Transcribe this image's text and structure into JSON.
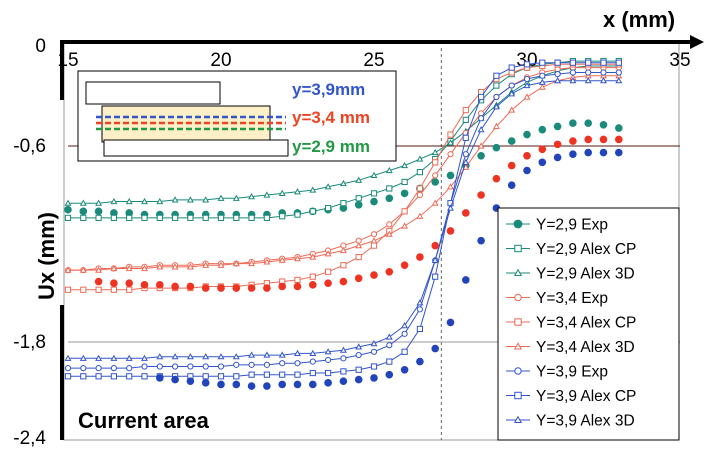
{
  "chart_data": {
    "type": "line",
    "xlabel": "x (mm)",
    "ylabel": "Ux (mm)",
    "xlim": [
      15,
      35
    ],
    "ylim": [
      -2.4,
      0
    ],
    "x_ticks": [
      "15",
      "20",
      "25",
      "30",
      "35"
    ],
    "y_ticks": [
      "0",
      "-0,6",
      "-1,8",
      "-2,4"
    ],
    "grid": false,
    "legend_position": "bottom-right",
    "reference_lines": {
      "x": 27.2,
      "y": [
        -0.6,
        -1.8
      ]
    },
    "annotation": "Current area",
    "inset": {
      "labels": [
        {
          "text": "y=3,9mm",
          "color": "#3355cc"
        },
        {
          "text": "y=3,4 mm",
          "color": "#ee4422"
        },
        {
          "text": "y=2,9 mm",
          "color": "#229944"
        }
      ]
    },
    "series": [
      {
        "name": "Y=2,9 Exp",
        "color": "#1a8a7a",
        "marker": "circle",
        "style": "dots",
        "x": [
          15.0,
          15.5,
          16.0,
          16.5,
          17.0,
          17.5,
          18.0,
          18.5,
          19.0,
          19.5,
          20.0,
          20.5,
          21.0,
          21.5,
          22.0,
          22.5,
          23.0,
          23.5,
          24.0,
          24.5,
          25.0,
          25.5,
          26.0,
          26.5,
          27.0,
          27.5,
          28.0,
          28.5,
          29.0,
          29.5,
          30.0,
          30.5,
          31.0,
          31.5,
          32.0,
          32.5,
          33.0
        ],
        "y": [
          -0.99,
          -1.0,
          -1.0,
          -1.01,
          -1.01,
          -1.02,
          -1.02,
          -1.02,
          -1.02,
          -1.02,
          -1.02,
          -1.02,
          -1.02,
          -1.02,
          -1.01,
          -1.01,
          -1.0,
          -0.99,
          -0.98,
          -0.96,
          -0.94,
          -0.92,
          -0.89,
          -0.86,
          -0.82,
          -0.78,
          -0.72,
          -0.66,
          -0.61,
          -0.57,
          -0.53,
          -0.5,
          -0.48,
          -0.46,
          -0.46,
          -0.47,
          -0.49
        ]
      },
      {
        "name": "Y=2,9 Alex CP",
        "color": "#1a8a7a",
        "marker": "square",
        "style": "line",
        "x": [
          15.0,
          15.5,
          16.0,
          16.5,
          17.0,
          17.5,
          18.0,
          18.5,
          19.0,
          19.5,
          20.0,
          20.5,
          21.0,
          21.5,
          22.0,
          22.5,
          23.0,
          23.5,
          24.0,
          24.5,
          25.0,
          25.5,
          26.0,
          26.5,
          27.0,
          27.5,
          28.0,
          28.5,
          29.0,
          29.5,
          30.0,
          30.5,
          31.0,
          31.5,
          32.0,
          32.5,
          33.0
        ],
        "y": [
          -1.04,
          -1.04,
          -1.04,
          -1.04,
          -1.04,
          -1.04,
          -1.04,
          -1.04,
          -1.04,
          -1.04,
          -1.04,
          -1.04,
          -1.04,
          -1.04,
          -1.03,
          -1.02,
          -1.0,
          -0.98,
          -0.95,
          -0.92,
          -0.89,
          -0.86,
          -0.82,
          -0.76,
          -0.68,
          -0.57,
          -0.44,
          -0.32,
          -0.23,
          -0.16,
          -0.12,
          -0.1,
          -0.09,
          -0.08,
          -0.08,
          -0.08,
          -0.08
        ]
      },
      {
        "name": "Y=2,9 Alex 3D",
        "color": "#1a8a7a",
        "marker": "triangle",
        "style": "line",
        "x": [
          15.0,
          15.5,
          16.0,
          16.5,
          17.0,
          17.5,
          18.0,
          18.5,
          19.0,
          19.5,
          20.0,
          20.5,
          21.0,
          21.5,
          22.0,
          22.5,
          23.0,
          23.5,
          24.0,
          24.5,
          25.0,
          25.5,
          26.0,
          26.5,
          27.0,
          27.5,
          28.0,
          28.5,
          29.0,
          29.5,
          30.0,
          30.5,
          31.0,
          31.5,
          32.0,
          32.5,
          33.0
        ],
        "y": [
          -0.95,
          -0.95,
          -0.95,
          -0.94,
          -0.94,
          -0.94,
          -0.94,
          -0.93,
          -0.93,
          -0.93,
          -0.92,
          -0.92,
          -0.91,
          -0.9,
          -0.89,
          -0.88,
          -0.87,
          -0.85,
          -0.83,
          -0.81,
          -0.78,
          -0.75,
          -0.72,
          -0.68,
          -0.64,
          -0.58,
          -0.51,
          -0.43,
          -0.35,
          -0.27,
          -0.21,
          -0.17,
          -0.14,
          -0.12,
          -0.11,
          -0.11,
          -0.11
        ]
      },
      {
        "name": "Y=3,4 Exp",
        "color": "#ee6a55",
        "marker": "circle-open",
        "style": "line",
        "x": [
          15.0,
          15.5,
          16.0,
          16.5,
          17.0,
          17.5,
          18.0,
          18.5,
          19.0,
          19.5,
          20.0,
          20.5,
          21.0,
          21.5,
          22.0,
          22.5,
          23.0,
          23.5,
          24.0,
          24.5,
          25.0,
          25.5,
          26.0,
          26.5,
          27.0,
          27.5,
          28.0,
          28.5,
          29.0,
          29.5,
          30.0,
          30.5,
          31.0,
          31.5,
          32.0,
          32.5,
          33.0
        ],
        "y": [
          -1.36,
          -1.36,
          -1.35,
          -1.35,
          -1.34,
          -1.34,
          -1.33,
          -1.33,
          -1.33,
          -1.32,
          -1.32,
          -1.32,
          -1.31,
          -1.3,
          -1.29,
          -1.28,
          -1.26,
          -1.24,
          -1.21,
          -1.18,
          -1.14,
          -1.08,
          -1.0,
          -0.9,
          -0.78,
          -0.65,
          -0.52,
          -0.4,
          -0.3,
          -0.23,
          -0.18,
          -0.15,
          -0.13,
          -0.12,
          -0.12,
          -0.12,
          -0.12
        ]
      },
      {
        "name": "Y=3,4 Alex CP",
        "color": "#ee6a55",
        "marker": "square",
        "style": "line",
        "x": [
          15.0,
          15.5,
          16.0,
          16.5,
          17.0,
          17.5,
          18.0,
          18.5,
          19.0,
          19.5,
          20.0,
          20.5,
          21.0,
          21.5,
          22.0,
          22.5,
          23.0,
          23.5,
          24.0,
          24.5,
          25.0,
          25.5,
          26.0,
          26.5,
          27.0,
          27.5,
          28.0,
          28.5,
          29.0,
          29.5,
          30.0,
          30.5,
          31.0,
          31.5,
          32.0,
          32.5,
          33.0
        ],
        "y": [
          -1.48,
          -1.48,
          -1.48,
          -1.48,
          -1.48,
          -1.47,
          -1.47,
          -1.47,
          -1.47,
          -1.46,
          -1.46,
          -1.46,
          -1.45,
          -1.44,
          -1.43,
          -1.42,
          -1.4,
          -1.37,
          -1.33,
          -1.28,
          -1.21,
          -1.12,
          -1.0,
          -0.86,
          -0.7,
          -0.53,
          -0.38,
          -0.27,
          -0.19,
          -0.15,
          -0.12,
          -0.11,
          -0.1,
          -0.1,
          -0.1,
          -0.1,
          -0.1
        ]
      },
      {
        "name": "Y=3,4 Alex 3D",
        "color": "#ee6a55",
        "marker": "triangle",
        "style": "line",
        "x": [
          15.0,
          15.5,
          16.0,
          16.5,
          17.0,
          17.5,
          18.0,
          18.5,
          19.0,
          19.5,
          20.0,
          20.5,
          21.0,
          21.5,
          22.0,
          22.5,
          23.0,
          23.5,
          24.0,
          24.5,
          25.0,
          25.5,
          26.0,
          26.5,
          27.0,
          27.5,
          28.0,
          28.5,
          29.0,
          29.5,
          30.0,
          30.5,
          31.0,
          31.5,
          32.0,
          32.5,
          33.0
        ],
        "y": [
          -1.36,
          -1.36,
          -1.36,
          -1.35,
          -1.35,
          -1.35,
          -1.34,
          -1.34,
          -1.34,
          -1.33,
          -1.33,
          -1.32,
          -1.32,
          -1.31,
          -1.3,
          -1.29,
          -1.28,
          -1.26,
          -1.24,
          -1.21,
          -1.18,
          -1.14,
          -1.09,
          -1.03,
          -0.95,
          -0.85,
          -0.73,
          -0.6,
          -0.48,
          -0.38,
          -0.3,
          -0.24,
          -0.2,
          -0.18,
          -0.17,
          -0.17,
          -0.17
        ]
      },
      {
        "name": "Y=3,9 Exp",
        "color": "#3355cc",
        "marker": "circle-open",
        "style": "line",
        "x": [
          15.0,
          15.5,
          16.0,
          16.5,
          17.0,
          17.5,
          18.0,
          18.5,
          19.0,
          19.5,
          20.0,
          20.5,
          21.0,
          21.5,
          22.0,
          22.5,
          23.0,
          23.5,
          24.0,
          24.5,
          25.0,
          25.5,
          26.0,
          26.5,
          27.0,
          27.5,
          28.0,
          28.5,
          29.0,
          29.5,
          30.0,
          30.5,
          31.0,
          31.5,
          32.0,
          32.5,
          33.0
        ],
        "y": [
          -1.96,
          -1.96,
          -1.96,
          -1.96,
          -1.96,
          -1.95,
          -1.95,
          -1.95,
          -1.95,
          -1.95,
          -1.95,
          -1.94,
          -1.94,
          -1.94,
          -1.93,
          -1.93,
          -1.92,
          -1.91,
          -1.9,
          -1.88,
          -1.86,
          -1.82,
          -1.75,
          -1.6,
          -1.3,
          -0.95,
          -0.65,
          -0.43,
          -0.3,
          -0.23,
          -0.19,
          -0.17,
          -0.16,
          -0.15,
          -0.15,
          -0.15,
          -0.15
        ]
      },
      {
        "name": "Y=3,9 Alex CP",
        "color": "#3355cc",
        "marker": "square",
        "style": "line",
        "x": [
          15.0,
          15.5,
          16.0,
          16.5,
          17.0,
          17.5,
          18.0,
          18.5,
          19.0,
          19.5,
          20.0,
          20.5,
          21.0,
          21.5,
          22.0,
          22.5,
          23.0,
          23.5,
          24.0,
          24.5,
          25.0,
          25.5,
          26.0,
          26.5,
          27.0,
          27.5,
          28.0,
          28.5,
          29.0,
          29.5,
          30.0,
          30.5,
          31.0,
          31.5,
          32.0,
          32.5,
          33.0
        ],
        "y": [
          -2.01,
          -2.01,
          -2.01,
          -2.01,
          -2.01,
          -2.01,
          -2.01,
          -2.01,
          -2.01,
          -2.01,
          -2.01,
          -2.01,
          -2.0,
          -2.0,
          -2.0,
          -2.0,
          -1.99,
          -1.99,
          -1.98,
          -1.97,
          -1.95,
          -1.92,
          -1.86,
          -1.72,
          -1.4,
          -0.95,
          -0.55,
          -0.3,
          -0.17,
          -0.12,
          -0.1,
          -0.09,
          -0.09,
          -0.09,
          -0.09,
          -0.09,
          -0.09
        ]
      },
      {
        "name": "Y=3,9 Alex 3D",
        "color": "#3355cc",
        "marker": "triangle",
        "style": "line",
        "x": [
          15.0,
          15.5,
          16.0,
          16.5,
          17.0,
          17.5,
          18.0,
          18.5,
          19.0,
          19.5,
          20.0,
          20.5,
          21.0,
          21.5,
          22.0,
          22.5,
          23.0,
          23.5,
          24.0,
          24.5,
          25.0,
          25.5,
          26.0,
          26.5,
          27.0,
          27.5,
          28.0,
          28.5,
          29.0,
          29.5,
          30.0,
          30.5,
          31.0,
          31.5,
          32.0,
          32.5,
          33.0
        ],
        "y": [
          -1.9,
          -1.9,
          -1.9,
          -1.9,
          -1.9,
          -1.9,
          -1.89,
          -1.89,
          -1.89,
          -1.89,
          -1.89,
          -1.89,
          -1.88,
          -1.88,
          -1.88,
          -1.87,
          -1.87,
          -1.86,
          -1.85,
          -1.83,
          -1.81,
          -1.77,
          -1.7,
          -1.56,
          -1.3,
          -0.98,
          -0.7,
          -0.5,
          -0.36,
          -0.28,
          -0.23,
          -0.21,
          -0.2,
          -0.2,
          -0.2,
          -0.2,
          -0.2
        ]
      },
      {
        "name": "Y=3,4 Exp (filled)",
        "color": "#ee3322",
        "marker": "circle",
        "style": "dots",
        "x": [
          16.0,
          16.5,
          17.0,
          17.5,
          18.0,
          18.5,
          19.0,
          19.5,
          20.0,
          20.5,
          21.0,
          21.5,
          22.0,
          22.5,
          23.0,
          23.5,
          24.0,
          24.5,
          25.0,
          25.5,
          26.0,
          26.5,
          27.0,
          27.5,
          28.0,
          28.5,
          29.0,
          29.5,
          30.0,
          30.5,
          31.0,
          31.5,
          32.0,
          32.5,
          33.0
        ],
        "y": [
          -1.43,
          -1.44,
          -1.44,
          -1.45,
          -1.45,
          -1.46,
          -1.46,
          -1.47,
          -1.47,
          -1.47,
          -1.47,
          -1.47,
          -1.46,
          -1.46,
          -1.45,
          -1.44,
          -1.43,
          -1.41,
          -1.39,
          -1.37,
          -1.33,
          -1.28,
          -1.21,
          -1.12,
          -1.01,
          -0.9,
          -0.8,
          -0.72,
          -0.66,
          -0.62,
          -0.59,
          -0.57,
          -0.56,
          -0.56,
          -0.56
        ]
      },
      {
        "name": "Y=3,9 Exp (filled)",
        "color": "#2244bb",
        "marker": "circle",
        "style": "dots",
        "x": [
          18.0,
          18.5,
          19.0,
          19.5,
          20.0,
          20.5,
          21.0,
          21.5,
          22.0,
          22.5,
          23.0,
          23.5,
          24.0,
          24.5,
          25.0,
          25.5,
          26.0,
          26.5,
          27.0,
          27.5,
          28.0,
          28.5,
          29.0,
          29.5,
          30.0,
          30.5,
          31.0,
          31.5,
          32.0,
          32.5,
          33.0
        ],
        "y": [
          -2.02,
          -2.03,
          -2.04,
          -2.05,
          -2.06,
          -2.06,
          -2.07,
          -2.07,
          -2.06,
          -2.06,
          -2.06,
          -2.05,
          -2.04,
          -2.03,
          -2.02,
          -2.0,
          -1.97,
          -1.92,
          -1.84,
          -1.68,
          -1.42,
          -1.18,
          -0.98,
          -0.84,
          -0.75,
          -0.7,
          -0.67,
          -0.65,
          -0.64,
          -0.64,
          -0.64
        ]
      }
    ]
  }
}
